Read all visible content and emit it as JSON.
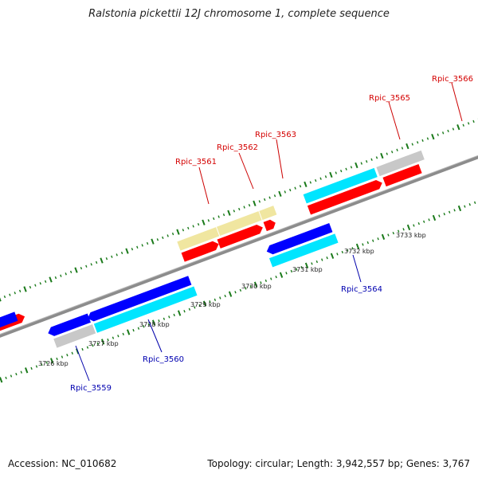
{
  "title": "Ralstonia pickettii 12J chromosome 1, complete sequence",
  "footer": {
    "accession": "Accession: NC_010682",
    "summary": "Topology: circular; Length: 3,942,557 bp; Genes: 3,767"
  },
  "colors": {
    "backbone": "#8c8c8c",
    "tick": "#1a7a1a",
    "cds_forward": "#ff0000",
    "cds_reverse": "#0000ff",
    "gene_pale_yellow": "#f0e6a0",
    "gene_cyan": "#00e5ff",
    "gene_grey": "#c8c8c8",
    "label_forward": "#cc0000",
    "label_reverse": "#0000aa"
  },
  "kbp_labels": [
    "3726 kbp",
    "3727 kbp",
    "3728 kbp",
    "3729 kbp",
    "3730 kbp",
    "3731 kbp",
    "3732 kbp",
    "3733 kbp"
  ],
  "gene_labels": [
    {
      "name": "Rpic_3559",
      "strand": "reverse"
    },
    {
      "name": "Rpic_3560",
      "strand": "reverse"
    },
    {
      "name": "Rpic_3561",
      "strand": "forward"
    },
    {
      "name": "Rpic_3562",
      "strand": "forward"
    },
    {
      "name": "Rpic_3563",
      "strand": "forward"
    },
    {
      "name": "Rpic_3564",
      "strand": "reverse"
    },
    {
      "name": "Rpic_3565",
      "strand": "forward"
    },
    {
      "name": "Rpic_3566",
      "strand": "forward"
    }
  ]
}
